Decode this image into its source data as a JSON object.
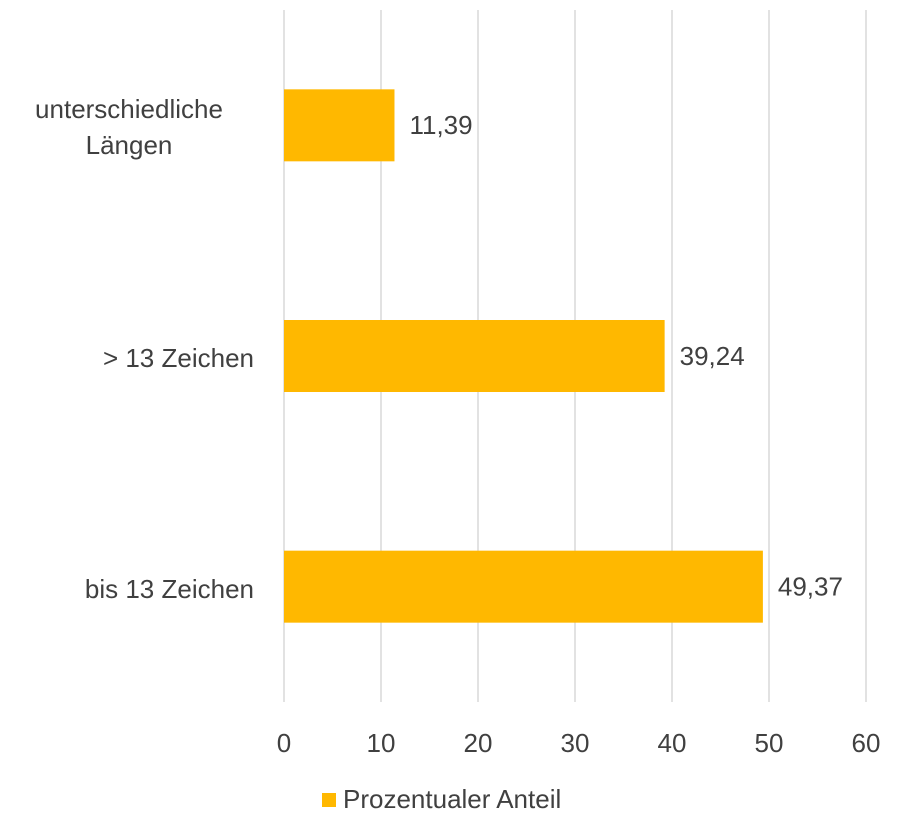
{
  "chart_data": {
    "type": "bar",
    "orientation": "horizontal",
    "categories": [
      "unterschiedliche Längen",
      "> 13 Zeichen",
      "bis 13 Zeichen"
    ],
    "series": [
      {
        "name": "Prozentualer Anteil",
        "color": "#FFB800",
        "values": [
          11.39,
          39.24,
          49.37
        ],
        "value_labels": [
          "11,39",
          "39,24",
          "49,37"
        ]
      }
    ],
    "xlim": [
      0,
      60
    ],
    "xticks": [
      0,
      10,
      20,
      30,
      40,
      50,
      60
    ],
    "grid": true,
    "legend": "bottom"
  }
}
